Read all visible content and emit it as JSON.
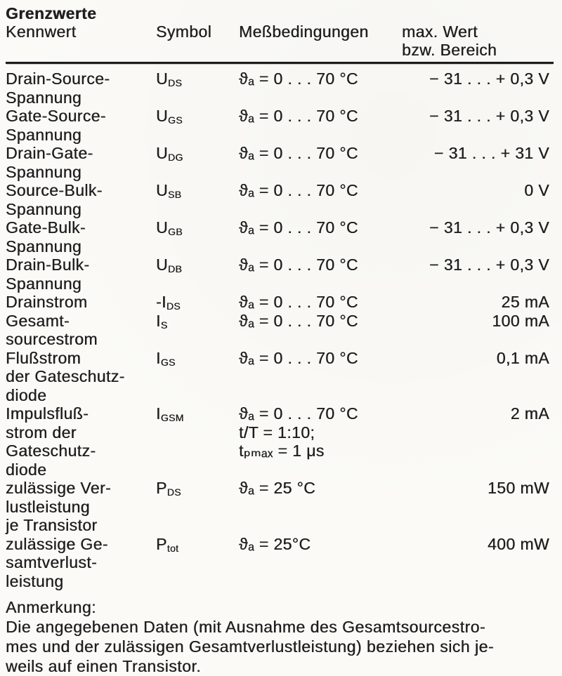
{
  "section_title": "Grenzwerte",
  "header": {
    "kennwert": "Kennwert",
    "symbol": "Symbol",
    "messbedingungen": "Meßbedingungen",
    "max_wert": "max. Wert\nbzw. Bereich"
  },
  "rows": [
    {
      "name": "Drain-Source-\nSpannung",
      "symbol_base": "U",
      "symbol_sub": "DS",
      "conditions": "ϑₐ = 0 . . . 70 °C",
      "value": "− 31 . . . + 0,3 V"
    },
    {
      "name": "Gate-Source-\nSpannung",
      "symbol_base": "U",
      "symbol_sub": "GS",
      "conditions": "ϑₐ = 0 . . . 70 °C",
      "value": "− 31 . . . + 0,3 V"
    },
    {
      "name": "Drain-Gate-\nSpannung",
      "symbol_base": "U",
      "symbol_sub": "DG",
      "conditions": "ϑₐ = 0 . . . 70 °C",
      "value": "− 31 . . . + 31 V"
    },
    {
      "name": "Source-Bulk-\nSpannung",
      "symbol_base": "U",
      "symbol_sub": "SB",
      "conditions": "ϑₐ = 0 . . . 70 °C",
      "value": "0 V"
    },
    {
      "name": "Gate-Bulk-\nSpannung",
      "symbol_base": "U",
      "symbol_sub": "GB",
      "conditions": "ϑₐ = 0 . . . 70 °C",
      "value": "− 31 . . . + 0,3 V"
    },
    {
      "name": "Drain-Bulk-\nSpannung",
      "symbol_base": "U",
      "symbol_sub": "DB",
      "conditions": "ϑₐ = 0 . . . 70 °C",
      "value": "− 31 . . . + 0,3 V"
    },
    {
      "name": "Drainstrom",
      "symbol_base": "-I",
      "symbol_sub": "DS",
      "conditions": "ϑₐ = 0 . . . 70 °C",
      "value": "25 mA"
    },
    {
      "name": "Gesamt-\nsourcestrom",
      "symbol_base": "I",
      "symbol_sub": "S",
      "conditions": "ϑₐ = 0 . . . 70 °C",
      "value": "100 mA"
    },
    {
      "name": "Flußstrom\nder Gateschutz-\ndiode",
      "symbol_base": "I",
      "symbol_sub": "GS",
      "conditions": "ϑₐ = 0 . . . 70 °C",
      "value": "0,1 mA"
    },
    {
      "name": "Impulsfluß-\nstrom der\nGateschutz-\ndiode",
      "symbol_base": "I",
      "symbol_sub": "GSM",
      "conditions": "ϑₐ = 0 . . . 70 °C\nt/T = 1:10;\ntₚₘₐₓ = 1 μs",
      "value": "2 mA"
    },
    {
      "name": "zulässige Ver-\nlustleistung\nje Transistor",
      "symbol_base": "P",
      "symbol_sub": "DS",
      "conditions": "ϑₐ = 25 °C",
      "value": "150 mW"
    },
    {
      "name": "zulässige Ge-\nsamtverlust-\nleistung",
      "symbol_base": "P",
      "symbol_sub": "tot",
      "conditions": "ϑₐ = 25°C",
      "value": "400 mW"
    }
  ],
  "note": {
    "label": "Anmerkung:",
    "text": "Die angegebenen Daten (mit Ausnahme des Gesamtsourcestro-\nmes und der zulässigen Gesamtverlustleistung) beziehen sich je-\nweils auf einen Transistor."
  },
  "colors": {
    "paper": "#fbfaf6",
    "ink": "#1f1f1f",
    "rule": "#1c1c1c"
  }
}
